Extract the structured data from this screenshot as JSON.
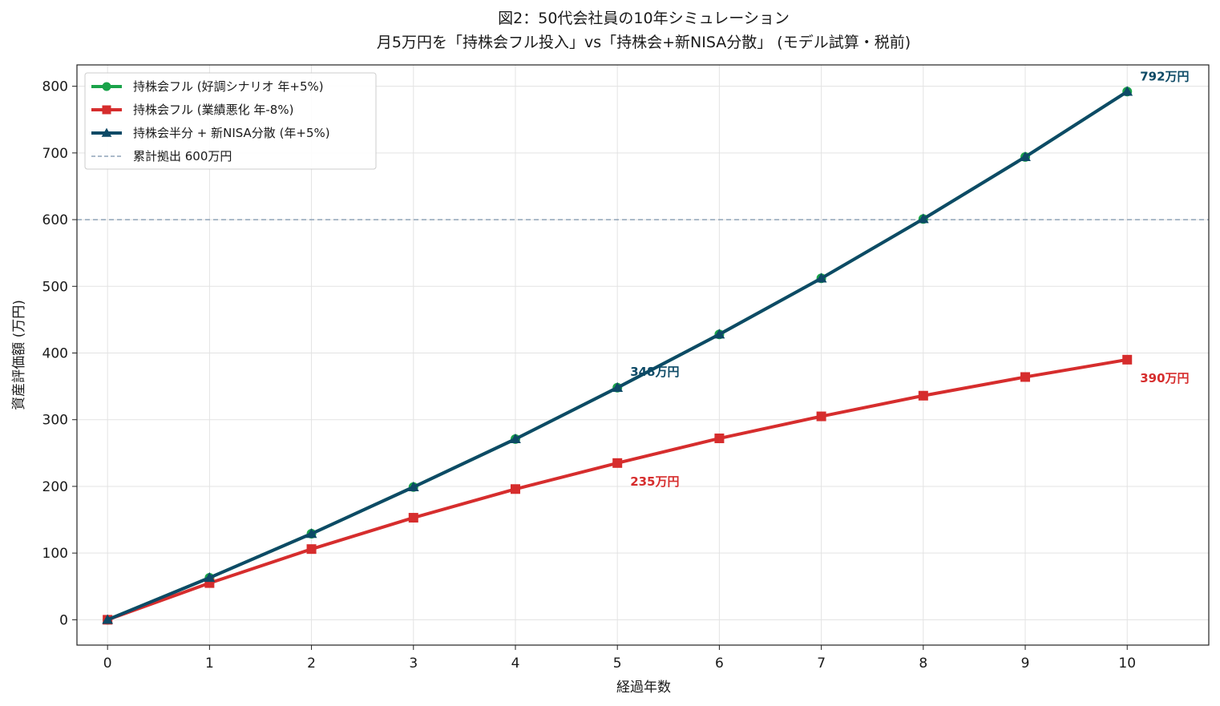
{
  "chart_data": {
    "type": "line",
    "title": "図2：50代会社員の10年シミュレーション",
    "subtitle": "月5万円を「持株会フル投入」vs「持株会+新NISA分散」 (モデル試算・税前)",
    "xlabel": "経過年数",
    "ylabel": "資産評価額 (万円)",
    "x": [
      0,
      1,
      2,
      3,
      4,
      5,
      6,
      7,
      8,
      9,
      10
    ],
    "xlim": [
      -0.3,
      10.8
    ],
    "ylim": [
      -38,
      832
    ],
    "yticks": [
      0,
      100,
      200,
      300,
      400,
      500,
      600,
      700,
      800
    ],
    "grid": true,
    "legend_position": "top-left",
    "series": [
      {
        "name": "持株会フル (好調シナリオ 年+5%)",
        "color": "#1aa34a",
        "marker": "circle",
        "values": [
          0,
          63,
          129,
          199,
          271,
          348,
          428,
          512,
          601,
          694,
          792
        ]
      },
      {
        "name": "持株会フル (業績悪化 年-8%)",
        "color": "#d62d2d",
        "marker": "square",
        "values": [
          0,
          55,
          106,
          153,
          196,
          235,
          272,
          305,
          336,
          364,
          390
        ]
      },
      {
        "name": "持株会半分 + 新NISA分散 (年+5%)",
        "color": "#0d4a66",
        "marker": "triangle",
        "values": [
          0,
          63,
          129,
          199,
          271,
          348,
          428,
          512,
          601,
          694,
          792
        ]
      }
    ],
    "reference_line": {
      "name": "累計拠出 600万円",
      "value": 600,
      "color": "#8fa3b8",
      "style": "dashed"
    },
    "annotations": [
      {
        "text": "792万円",
        "x": 10,
        "y": 792,
        "color": "#0d4a66"
      },
      {
        "text": "348万円",
        "x": 5,
        "y": 348,
        "color": "#0d4a66"
      },
      {
        "text": "390万円",
        "x": 10,
        "y": 390,
        "color": "#d62d2d"
      },
      {
        "text": "235万円",
        "x": 5,
        "y": 235,
        "color": "#d62d2d"
      }
    ]
  }
}
